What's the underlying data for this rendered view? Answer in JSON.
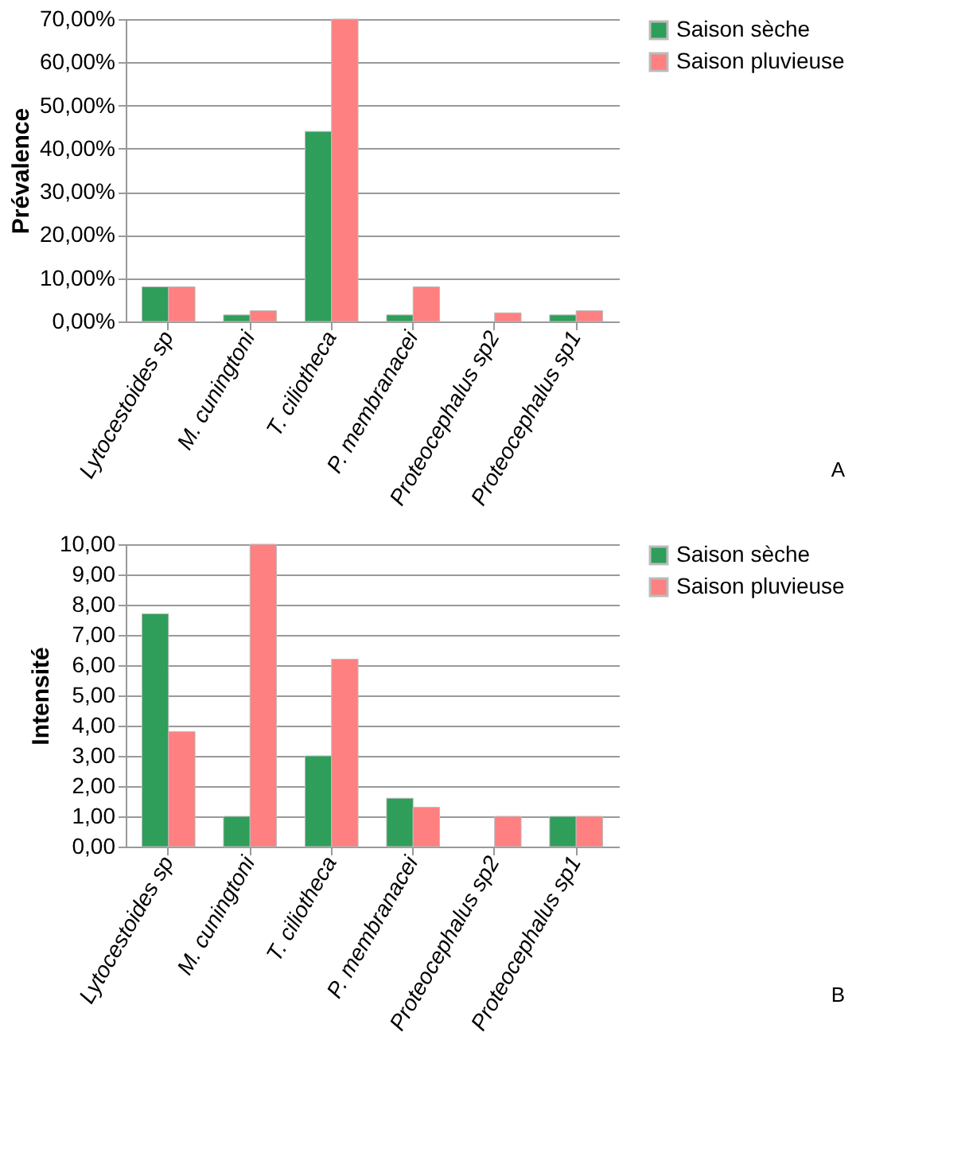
{
  "chart_data": [
    {
      "type": "bar",
      "ylabel": "Prévalence",
      "categories": [
        "Lytocestoides sp",
        "M. cuningtoni",
        "T. ciliotheca",
        "P. membranacei",
        "Proteocephalus sp2",
        "Proteocephalus sp1"
      ],
      "series": [
        {
          "name": "Saison sèche",
          "color": "#2e9e5a",
          "values": [
            8,
            1.5,
            44,
            1.5,
            null,
            1.5
          ]
        },
        {
          "name": "Saison pluvieuse",
          "color": "#ff8080",
          "values": [
            8,
            2.5,
            70,
            8,
            2,
            2.5
          ]
        }
      ],
      "ylim": [
        0,
        70
      ],
      "yticks": [
        {
          "value": 0,
          "label": "0,00%"
        },
        {
          "value": 10,
          "label": "10,00%"
        },
        {
          "value": 20,
          "label": "20,00%"
        },
        {
          "value": 30,
          "label": "30,00%"
        },
        {
          "value": 40,
          "label": "40,00%"
        },
        {
          "value": 50,
          "label": "50,00%"
        },
        {
          "value": 60,
          "label": "60,00%"
        },
        {
          "value": 70,
          "label": "70,00%"
        }
      ],
      "grid": "y",
      "legend": "right",
      "annotations": [
        "A"
      ]
    },
    {
      "type": "bar",
      "ylabel": "Intensité",
      "categories": [
        "Lytocestoides sp",
        "M. cuningtoni",
        "T. ciliotheca",
        "P. membranacei",
        "Proteocephalus sp2",
        "Proteocephalus sp1"
      ],
      "series": [
        {
          "name": "Saison sèche",
          "color": "#2e9e5a",
          "values": [
            7.7,
            1.0,
            3.0,
            1.6,
            null,
            1.0
          ]
        },
        {
          "name": "Saison pluvieuse",
          "color": "#ff8080",
          "values": [
            3.8,
            10.0,
            6.2,
            1.3,
            1.0,
            1.0
          ]
        }
      ],
      "ylim": [
        0,
        10
      ],
      "yticks": [
        {
          "value": 0,
          "label": "0,00"
        },
        {
          "value": 1,
          "label": "1,00"
        },
        {
          "value": 2,
          "label": "2,00"
        },
        {
          "value": 3,
          "label": "3,00"
        },
        {
          "value": 4,
          "label": "4,00"
        },
        {
          "value": 5,
          "label": "5,00"
        },
        {
          "value": 6,
          "label": "6,00"
        },
        {
          "value": 7,
          "label": "7,00"
        },
        {
          "value": 8,
          "label": "8,00"
        },
        {
          "value": 9,
          "label": "9,00"
        },
        {
          "value": 10,
          "label": "10,00"
        }
      ],
      "grid": "y",
      "legend": "right",
      "annotations": [
        "B"
      ]
    }
  ]
}
